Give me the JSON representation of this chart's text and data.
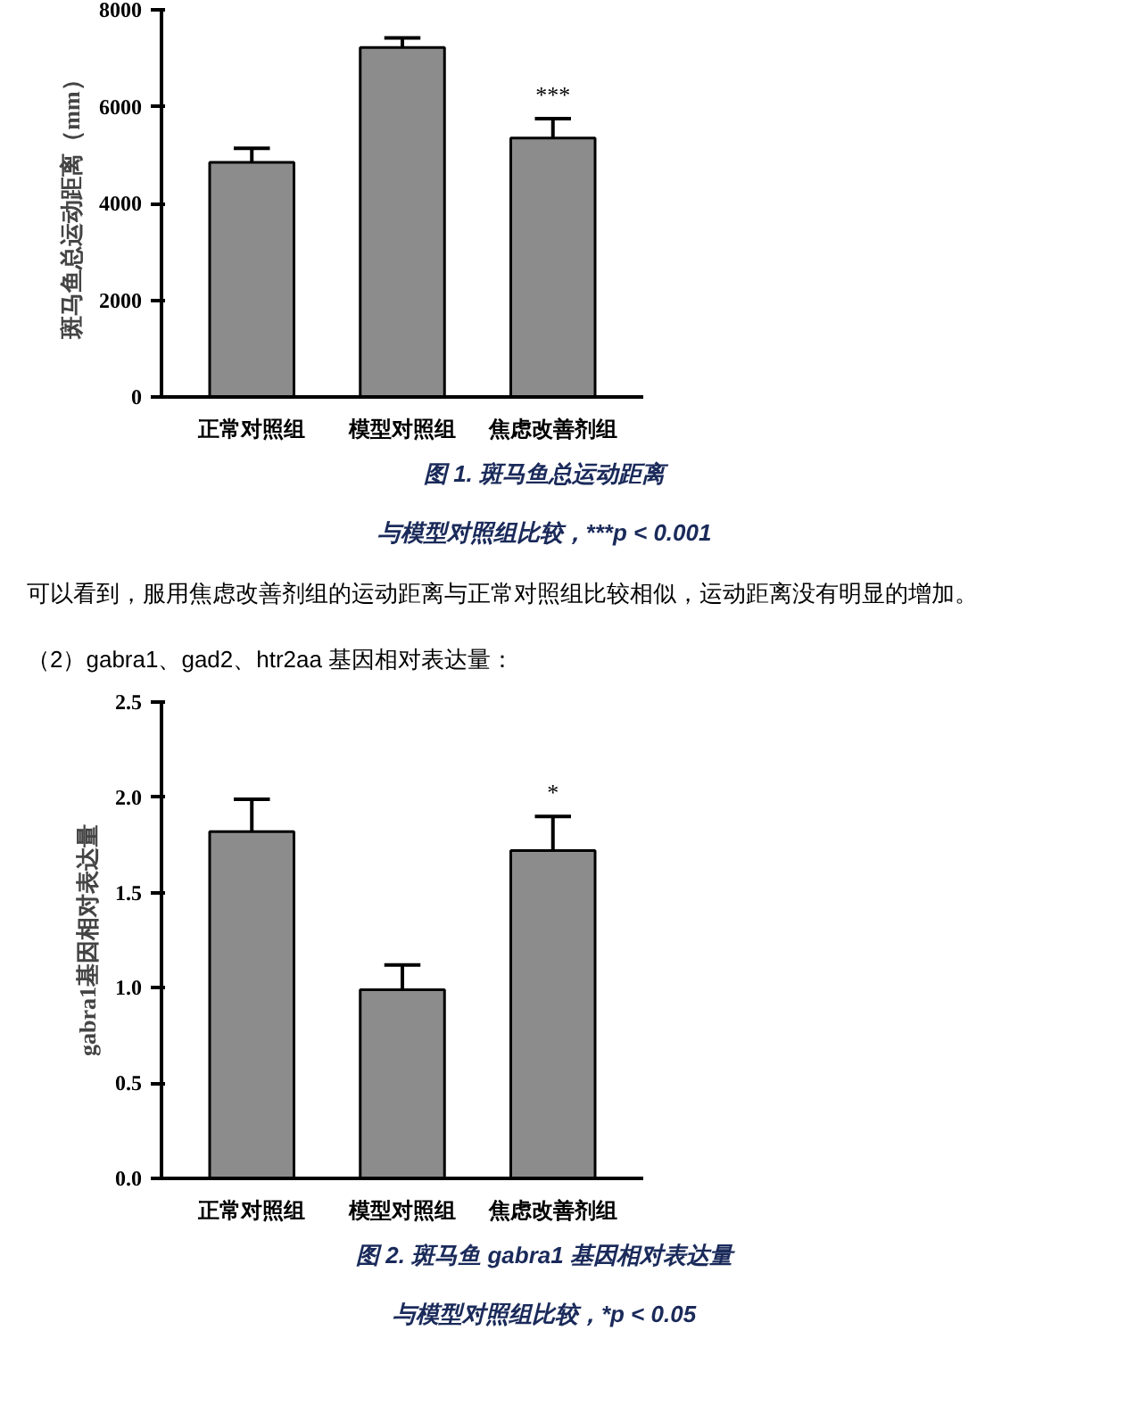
{
  "chart_data": [
    {
      "type": "bar",
      "ylabel": "斑马鱼总运动距离（mm）",
      "categories": [
        "正常对照组",
        "模型对照组",
        "焦虑改善剂组"
      ],
      "values": [
        4850,
        7220,
        5350
      ],
      "errors": [
        290,
        200,
        400
      ],
      "color": "#8c8c8c",
      "ylim": [
        0,
        8000
      ],
      "yticks": [
        0,
        2000,
        4000,
        6000,
        8000
      ],
      "grid": false,
      "annotations": [
        {
          "text": "***",
          "x": "焦虑改善剂组",
          "y": 5750
        },
        "图 1. 斑马鱼总运动距离",
        "与模型对照组比较，***p < 0.001",
        "可以看到，服用焦虑改善剂组的运动距离与正常对照组比较相似，运动距离没有明显的增加。",
        "（2）gabra1、gad2、htr2aa 基因相对表达量："
      ]
    },
    {
      "type": "bar",
      "ylabel": "gabra1基因相对表达量",
      "categories": [
        "正常对照组",
        "模型对照组",
        "焦虑改善剂组"
      ],
      "values": [
        1.82,
        0.99,
        1.72
      ],
      "errors": [
        0.17,
        0.13,
        0.18
      ],
      "color": "#8c8c8c",
      "ylim": [
        0,
        2.5
      ],
      "yticks": [
        {
          "value": 0,
          "label": "0.0"
        },
        {
          "value": 0.5,
          "label": "0.5"
        },
        {
          "value": 1,
          "label": "1.0"
        },
        {
          "value": 1.5,
          "label": "1.5"
        },
        {
          "value": 2,
          "label": "2.0"
        },
        {
          "value": 2.5,
          "label": "2.5"
        }
      ],
      "grid": false,
      "annotations": [
        {
          "text": "*",
          "x": "焦虑改善剂组",
          "y": 1.9
        },
        "图 2. 斑马鱼 gabra1 基因相对表达量",
        "与模型对照组比较，*p < 0.05"
      ]
    }
  ]
}
